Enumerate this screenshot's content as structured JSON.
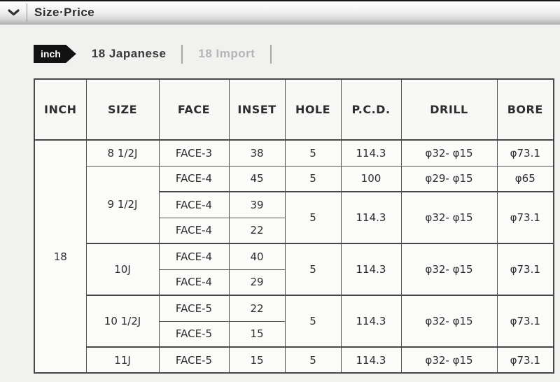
{
  "titlebar": {
    "title": "Size·Price"
  },
  "tabs": {
    "badge_label": "inch",
    "active_tab": "18 Japanese",
    "inactive_tab": "18 Import"
  },
  "table": {
    "headers": [
      "INCH",
      "SIZE",
      "FACE",
      "INSET",
      "HOLE",
      "P.C.D.",
      "DRILL",
      "BORE"
    ],
    "body": [
      {
        "thick_top": false,
        "cells": [
          {
            "text": "18",
            "rowspan": 9
          },
          {
            "text": "8 1/2J"
          },
          {
            "text": "FACE-3"
          },
          {
            "text": "38"
          },
          {
            "text": "5"
          },
          {
            "text": "114.3"
          },
          {
            "text": "φ32- φ15"
          },
          {
            "text": "φ73.1"
          }
        ]
      },
      {
        "thick_top": false,
        "cells": [
          {
            "text": "9 1/2J",
            "rowspan": 3
          },
          {
            "text": "FACE-4"
          },
          {
            "text": "45"
          },
          {
            "text": "5"
          },
          {
            "text": "100"
          },
          {
            "text": "φ29- φ15"
          },
          {
            "text": "φ65"
          }
        ]
      },
      {
        "thick_top": true,
        "cells": [
          {
            "text": "FACE-4"
          },
          {
            "text": "39"
          },
          {
            "text": "5",
            "rowspan": 2
          },
          {
            "text": "114.3",
            "rowspan": 2
          },
          {
            "text": "φ32- φ15",
            "rowspan": 2
          },
          {
            "text": "φ73.1",
            "rowspan": 2
          }
        ]
      },
      {
        "thick_top": false,
        "cells": [
          {
            "text": "FACE-4"
          },
          {
            "text": "22"
          }
        ]
      },
      {
        "thick_top": true,
        "cells": [
          {
            "text": "10J",
            "rowspan": 2
          },
          {
            "text": "FACE-4"
          },
          {
            "text": "40"
          },
          {
            "text": "5",
            "rowspan": 2
          },
          {
            "text": "114.3",
            "rowspan": 2
          },
          {
            "text": "φ32- φ15",
            "rowspan": 2
          },
          {
            "text": "φ73.1",
            "rowspan": 2
          }
        ]
      },
      {
        "thick_top": false,
        "cells": [
          {
            "text": "FACE-4"
          },
          {
            "text": "29"
          }
        ]
      },
      {
        "thick_top": true,
        "cells": [
          {
            "text": "10 1/2J",
            "rowspan": 2
          },
          {
            "text": "FACE-5"
          },
          {
            "text": "22"
          },
          {
            "text": "5",
            "rowspan": 2
          },
          {
            "text": "114.3",
            "rowspan": 2
          },
          {
            "text": "φ32- φ15",
            "rowspan": 2
          },
          {
            "text": "φ73.1",
            "rowspan": 2
          }
        ]
      },
      {
        "thick_top": false,
        "cells": [
          {
            "text": "FACE-5"
          },
          {
            "text": "15"
          }
        ]
      },
      {
        "thick_top": true,
        "cells": [
          {
            "text": "11J"
          },
          {
            "text": "FACE-5"
          },
          {
            "text": "15"
          },
          {
            "text": "5"
          },
          {
            "text": "114.3"
          },
          {
            "text": "φ32- φ15"
          },
          {
            "text": "φ73.1"
          }
        ]
      }
    ]
  }
}
